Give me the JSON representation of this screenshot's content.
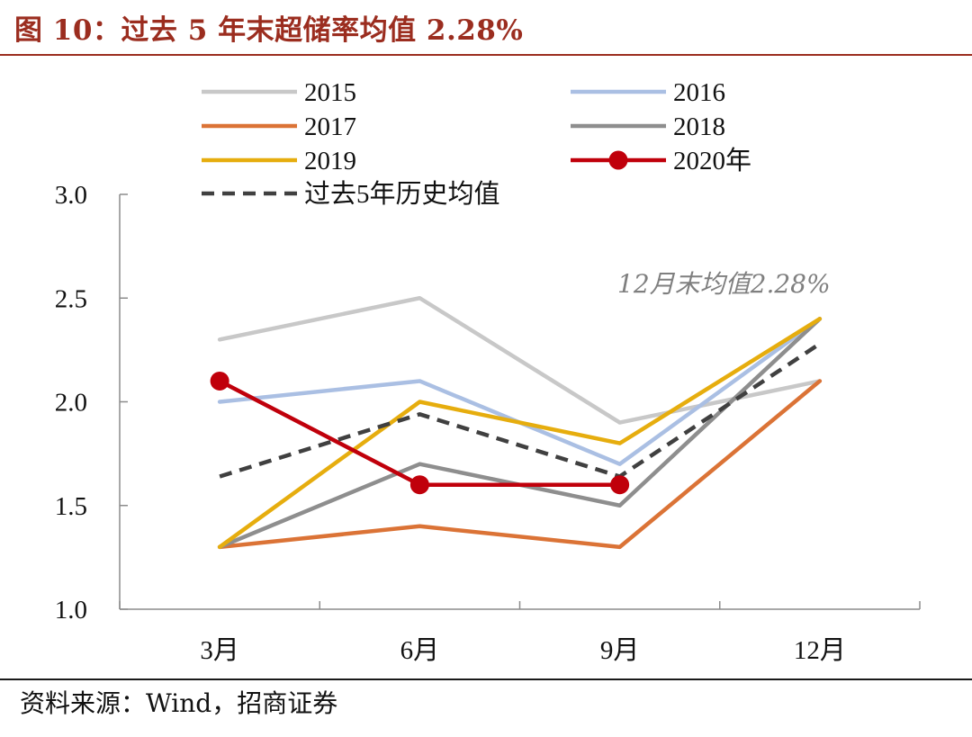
{
  "title": "图 10：过去 5 年末超储率均值 2.28%",
  "source": "资料来源：Wind，招商证券",
  "chart_data": {
    "type": "line",
    "categories": [
      "3月",
      "6月",
      "9月",
      "12月"
    ],
    "ylim": [
      1.0,
      3.0
    ],
    "yticks": [
      "1.0",
      "1.5",
      "2.0",
      "2.5",
      "3.0"
    ],
    "grid": false,
    "legend_position": "top",
    "annotation": "12月末均值2.28%",
    "series": [
      {
        "name": "2015",
        "values": [
          2.3,
          2.5,
          1.9,
          2.1
        ],
        "color": "#c8c8c8",
        "style": "solid",
        "markers": false
      },
      {
        "name": "2016",
        "values": [
          2.0,
          2.1,
          1.7,
          2.4
        ],
        "color": "#aabfe3",
        "style": "solid",
        "markers": false
      },
      {
        "name": "2017",
        "values": [
          1.3,
          1.4,
          1.3,
          2.1
        ],
        "color": "#db7336",
        "style": "solid",
        "markers": false
      },
      {
        "name": "2018",
        "values": [
          1.3,
          1.7,
          1.5,
          2.4
        ],
        "color": "#8e8e8e",
        "style": "solid",
        "markers": false
      },
      {
        "name": "2019",
        "values": [
          1.3,
          2.0,
          1.8,
          2.4
        ],
        "color": "#e6ad0e",
        "style": "solid",
        "markers": false
      },
      {
        "name": "2020年",
        "values": [
          2.1,
          1.6,
          1.6,
          null
        ],
        "color": "#c0000b",
        "style": "solid",
        "markers": true
      },
      {
        "name": "过去5年历史均值",
        "values": [
          1.64,
          1.94,
          1.64,
          2.28
        ],
        "color": "#404040",
        "style": "dashed",
        "markers": false
      }
    ]
  }
}
